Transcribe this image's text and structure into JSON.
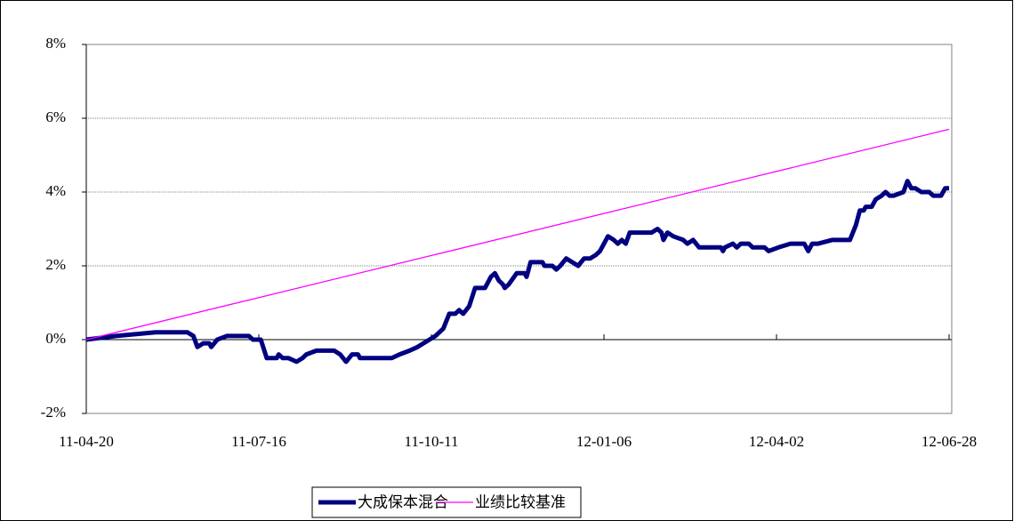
{
  "chart_data": {
    "type": "line",
    "series": [
      {
        "name": "大成保本混合",
        "color": "#000080",
        "x": [
          "11-04-20",
          "11-05-05",
          "11-05-25",
          "11-06-10",
          "11-06-13",
          "11-06-15",
          "11-06-18",
          "11-06-21",
          "11-06-22",
          "11-06-25",
          "11-06-30",
          "11-07-11",
          "11-07-13",
          "11-07-17",
          "11-07-20",
          "11-07-25",
          "11-07-26",
          "11-07-28",
          "11-07-31",
          "11-08-04",
          "11-08-07",
          "11-08-09",
          "11-08-14",
          "11-08-23",
          "11-08-26",
          "11-08-29",
          "11-09-01",
          "11-09-04",
          "11-09-05",
          "11-09-21",
          "11-09-25",
          "11-09-30",
          "11-10-04",
          "11-10-10",
          "11-10-13",
          "11-10-17",
          "11-10-20",
          "11-10-23",
          "11-10-25",
          "11-10-27",
          "11-10-30",
          "11-11-02",
          "11-11-07",
          "11-11-10",
          "11-11-12",
          "11-11-14",
          "11-11-16",
          "11-11-17",
          "11-11-19",
          "11-11-23",
          "11-11-27",
          "11-11-28",
          "11-11-30",
          "11-12-06",
          "11-12-07",
          "11-12-11",
          "11-12-13",
          "11-12-15",
          "11-12-18",
          "11-12-21",
          "11-12-24",
          "11-12-27",
          "11-12-30",
          "12-01-02",
          "12-01-04",
          "12-01-08",
          "12-01-11",
          "12-01-13",
          "12-01-15",
          "12-01-17",
          "12-01-19",
          "12-01-30",
          "12-02-02",
          "12-02-04",
          "12-02-05",
          "12-02-07",
          "12-02-10",
          "12-02-15",
          "12-02-17",
          "12-02-20",
          "12-02-23",
          "12-03-05",
          "12-03-06",
          "12-03-07",
          "12-03-11",
          "12-03-13",
          "12-03-15",
          "12-03-19",
          "12-03-21",
          "12-03-27",
          "12-03-29",
          "12-04-03",
          "12-04-09",
          "12-04-16",
          "12-04-18",
          "12-04-20",
          "12-04-23",
          "12-04-30",
          "12-05-09",
          "12-05-12",
          "12-05-14",
          "12-05-16",
          "12-05-17",
          "12-05-20",
          "12-05-22",
          "12-05-25",
          "12-05-27",
          "12-05-29",
          "12-05-31",
          "12-06-05",
          "12-06-07",
          "12-06-09",
          "12-06-11",
          "12-06-14",
          "12-06-18",
          "12-06-20",
          "12-06-24",
          "12-06-26",
          "12-06-28"
        ],
        "values": [
          0,
          0.1,
          0.2,
          0.2,
          0.1,
          -0.2,
          -0.1,
          -0.1,
          -0.2,
          0,
          0.1,
          0.1,
          0,
          0,
          -0.5,
          -0.5,
          -0.4,
          -0.5,
          -0.5,
          -0.6,
          -0.5,
          -0.4,
          -0.3,
          -0.3,
          -0.4,
          -0.6,
          -0.4,
          -0.4,
          -0.5,
          -0.5,
          -0.4,
          -0.3,
          -0.2,
          0,
          0.1,
          0.3,
          0.7,
          0.7,
          0.8,
          0.7,
          0.9,
          1.4,
          1.4,
          1.7,
          1.8,
          1.6,
          1.5,
          1.4,
          1.5,
          1.8,
          1.8,
          1.7,
          2.1,
          2.1,
          2.0,
          2.0,
          1.9,
          2.0,
          2.2,
          2.1,
          2.0,
          2.2,
          2.2,
          2.3,
          2.4,
          2.8,
          2.7,
          2.6,
          2.7,
          2.6,
          2.9,
          2.9,
          3.0,
          2.9,
          2.7,
          2.9,
          2.8,
          2.7,
          2.6,
          2.7,
          2.5,
          2.5,
          2.4,
          2.5,
          2.6,
          2.5,
          2.6,
          2.6,
          2.5,
          2.5,
          2.4,
          2.5,
          2.6,
          2.6,
          2.4,
          2.6,
          2.6,
          2.7,
          2.7,
          3.1,
          3.5,
          3.5,
          3.6,
          3.6,
          3.8,
          3.9,
          4.0,
          3.9,
          3.9,
          4.0,
          4.3,
          4.1,
          4.1,
          4.0,
          4.0,
          3.9,
          3.9,
          4.1,
          4.1
        ]
      },
      {
        "name": "业绩比较基准",
        "color": "#ff00ff",
        "x": [
          "11-04-20",
          "11-07-16",
          "11-10-11",
          "12-01-06",
          "12-04-02",
          "12-06-28"
        ],
        "values": [
          0,
          1.14,
          2.28,
          3.42,
          4.56,
          5.7
        ]
      }
    ],
    "xlim": [
      "11-04-20",
      "12-06-28"
    ],
    "xticks": [
      "11-04-20",
      "11-07-16",
      "11-10-11",
      "12-01-06",
      "12-04-02",
      "12-06-28"
    ],
    "ylim": [
      -2,
      8
    ],
    "yticks": [
      {
        "value": -2,
        "label": "-2%"
      },
      {
        "value": 0,
        "label": "0%"
      },
      {
        "value": 2,
        "label": "2%"
      },
      {
        "value": 4,
        "label": "4%"
      },
      {
        "value": 6,
        "label": "6%"
      },
      {
        "value": 8,
        "label": "8%"
      }
    ],
    "grid": true,
    "legend": "bottom"
  }
}
